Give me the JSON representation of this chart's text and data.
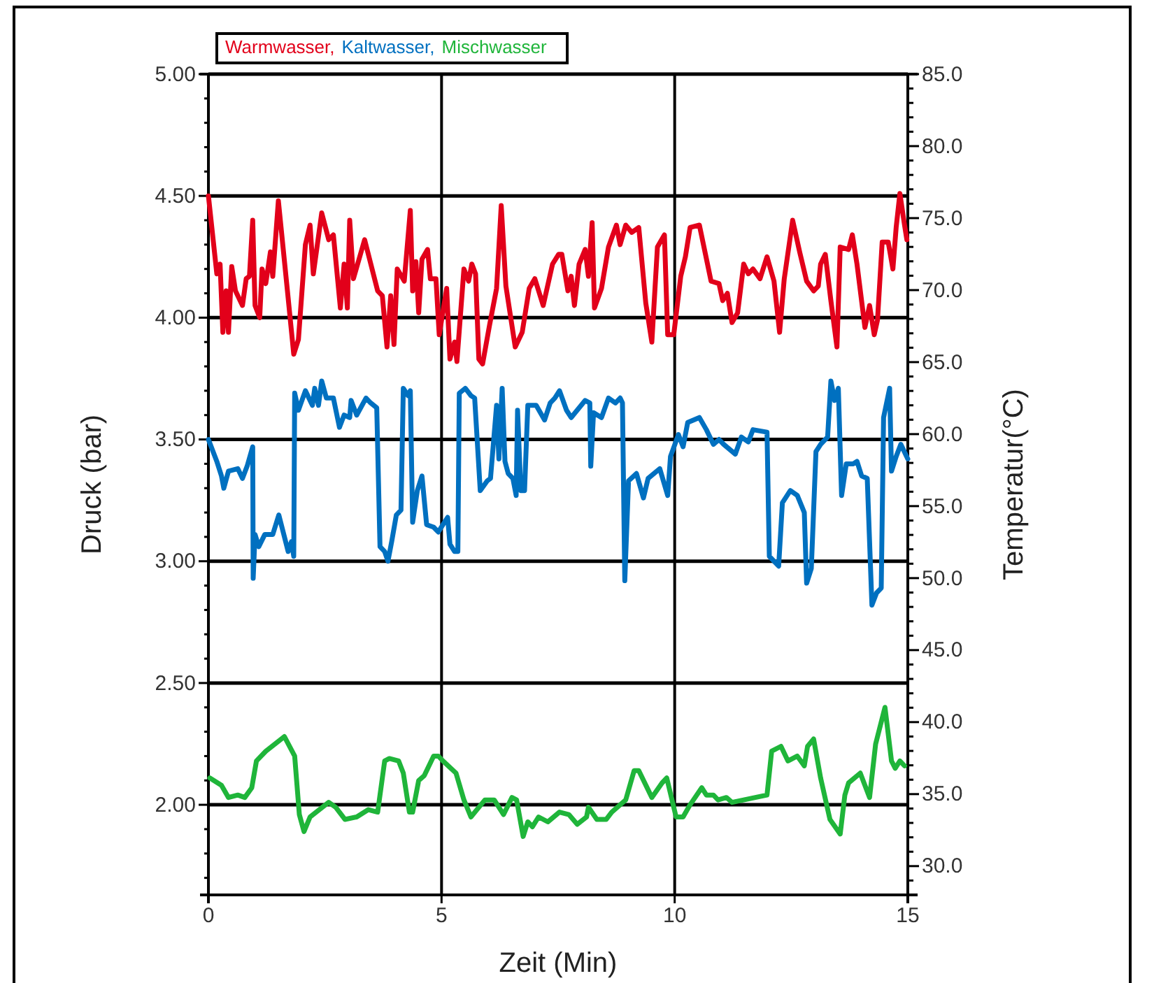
{
  "chart_data": {
    "type": "line",
    "xlabel": "Zeit (Min)",
    "ylabel": "Druck (bar)",
    "y2label": "Temperatur(°C)",
    "xlim": [
      0,
      15
    ],
    "xticks": [
      0,
      5,
      10,
      15
    ],
    "ylim": [
      1.63,
      5.0
    ],
    "yticks": [
      {
        "value": 5.0,
        "label": "5.00"
      },
      {
        "value": 4.9,
        "label": null
      },
      {
        "value": 4.8,
        "label": null
      },
      {
        "value": 4.7,
        "label": null
      },
      {
        "value": 4.6,
        "label": null
      },
      {
        "value": 4.5,
        "label": "4.50"
      },
      {
        "value": 4.4,
        "label": null
      },
      {
        "value": 4.3,
        "label": null
      },
      {
        "value": 4.2,
        "label": null
      },
      {
        "value": 4.1,
        "label": null
      },
      {
        "value": 4.0,
        "label": "4.00"
      },
      {
        "value": 3.9,
        "label": null
      },
      {
        "value": 3.8,
        "label": null
      },
      {
        "value": 3.7,
        "label": null
      },
      {
        "value": 3.6,
        "label": null
      },
      {
        "value": 3.5,
        "label": "3.50"
      },
      {
        "value": 3.4,
        "label": null
      },
      {
        "value": 3.3,
        "label": null
      },
      {
        "value": 3.2,
        "label": null
      },
      {
        "value": 3.1,
        "label": null
      },
      {
        "value": 3.0,
        "label": "3.00"
      },
      {
        "value": 2.9,
        "label": null
      },
      {
        "value": 2.8,
        "label": null
      },
      {
        "value": 2.7,
        "label": null
      },
      {
        "value": 2.6,
        "label": null
      },
      {
        "value": 2.5,
        "label": "2.50"
      },
      {
        "value": 2.4,
        "label": null
      },
      {
        "value": 2.3,
        "label": null
      },
      {
        "value": 2.2,
        "label": null
      },
      {
        "value": 2.1,
        "label": null
      },
      {
        "value": 2.0,
        "label": "2.00"
      },
      {
        "value": 1.9,
        "label": null
      },
      {
        "value": 1.8,
        "label": null
      },
      {
        "value": 1.7,
        "label": null
      }
    ],
    "y2lim": [
      28,
      85
    ],
    "y2ticks": [
      {
        "value": 85,
        "label": "85.0"
      },
      {
        "value": 84,
        "label": null
      },
      {
        "value": 83,
        "label": null
      },
      {
        "value": 82,
        "label": null
      },
      {
        "value": 81,
        "label": null
      },
      {
        "value": 80,
        "label": "80.0"
      },
      {
        "value": 79,
        "label": null
      },
      {
        "value": 78,
        "label": null
      },
      {
        "value": 77,
        "label": null
      },
      {
        "value": 76,
        "label": null
      },
      {
        "value": 75,
        "label": "75.0"
      },
      {
        "value": 74,
        "label": null
      },
      {
        "value": 73,
        "label": null
      },
      {
        "value": 72,
        "label": null
      },
      {
        "value": 71,
        "label": null
      },
      {
        "value": 70,
        "label": "70.0"
      },
      {
        "value": 69,
        "label": null
      },
      {
        "value": 68,
        "label": null
      },
      {
        "value": 67,
        "label": null
      },
      {
        "value": 66,
        "label": null
      },
      {
        "value": 65,
        "label": "65.0"
      },
      {
        "value": 64,
        "label": null
      },
      {
        "value": 63,
        "label": null
      },
      {
        "value": 62,
        "label": null
      },
      {
        "value": 61,
        "label": null
      },
      {
        "value": 60,
        "label": "60.0"
      },
      {
        "value": 59,
        "label": null
      },
      {
        "value": 58,
        "label": null
      },
      {
        "value": 57,
        "label": null
      },
      {
        "value": 56,
        "label": null
      },
      {
        "value": 55,
        "label": "55.0"
      },
      {
        "value": 54,
        "label": null
      },
      {
        "value": 53,
        "label": null
      },
      {
        "value": 52,
        "label": null
      },
      {
        "value": 51,
        "label": null
      },
      {
        "value": 50,
        "label": "50.0"
      },
      {
        "value": 49,
        "label": null
      },
      {
        "value": 48,
        "label": null
      },
      {
        "value": 47,
        "label": null
      },
      {
        "value": 46,
        "label": null
      },
      {
        "value": 45,
        "label": "45.0"
      },
      {
        "value": 44,
        "label": null
      },
      {
        "value": 43,
        "label": null
      },
      {
        "value": 42,
        "label": null
      },
      {
        "value": 41,
        "label": null
      },
      {
        "value": 40,
        "label": "40.0"
      },
      {
        "value": 39,
        "label": null
      },
      {
        "value": 38,
        "label": null
      },
      {
        "value": 37,
        "label": null
      },
      {
        "value": 36,
        "label": null
      },
      {
        "value": 35,
        "label": "35.0"
      },
      {
        "value": 34,
        "label": null
      },
      {
        "value": 33,
        "label": null
      },
      {
        "value": 32,
        "label": null
      },
      {
        "value": 31,
        "label": null
      },
      {
        "value": 30,
        "label": "30.0"
      },
      {
        "value": 29,
        "label": null
      }
    ],
    "grid": true,
    "legend": "top left",
    "line_style": "solid",
    "marker": "none",
    "series": [
      {
        "name": "Warmwasser,",
        "color": "#e2001a",
        "x": [
          0,
          0.18,
          0.25,
          0.31,
          0.38,
          0.43,
          0.5,
          0.58,
          0.73,
          0.81,
          0.88,
          0.95,
          1.0,
          1.1,
          1.15,
          1.23,
          1.33,
          1.38,
          1.5,
          1.7,
          1.83,
          1.93,
          2.08,
          2.18,
          2.25,
          2.43,
          2.58,
          2.68,
          2.83,
          2.91,
          2.98,
          3.03,
          3.11,
          3.35,
          3.63,
          3.73,
          3.83,
          3.91,
          3.98,
          4.05,
          4.2,
          4.33,
          4.38,
          4.45,
          4.51,
          4.58,
          4.7,
          4.76,
          4.88,
          4.95,
          5.11,
          5.18,
          5.28,
          5.33,
          5.48,
          5.58,
          5.65,
          5.73,
          5.8,
          5.88,
          6.03,
          6.18,
          6.28,
          6.38,
          6.58,
          6.73,
          6.88,
          7.0,
          7.18,
          7.38,
          7.51,
          7.58,
          7.71,
          7.78,
          7.85,
          7.95,
          8.08,
          8.15,
          8.23,
          8.28,
          8.43,
          8.58,
          8.75,
          8.83,
          8.95,
          9.08,
          9.23,
          9.38,
          9.51,
          9.63,
          9.78,
          9.85,
          9.98,
          10.13,
          10.23,
          10.33,
          10.53,
          10.78,
          10.95,
          11.03,
          11.13,
          11.23,
          11.35,
          11.48,
          11.58,
          11.68,
          11.83,
          11.98,
          12.13,
          12.25,
          12.35,
          12.53,
          12.68,
          12.83,
          12.98,
          13.08,
          13.13,
          13.23,
          13.35,
          13.48,
          13.55,
          13.73,
          13.81,
          13.91,
          14.08,
          14.18,
          14.28,
          14.35,
          14.45,
          14.58,
          14.68,
          14.75,
          14.83,
          14.93,
          14.98
        ],
        "values": [
          4.5,
          4.18,
          4.22,
          3.94,
          4.11,
          3.94,
          4.21,
          4.11,
          4.05,
          4.16,
          4.17,
          4.4,
          4.05,
          4.0,
          4.2,
          4.14,
          4.27,
          4.17,
          4.48,
          4.1,
          3.85,
          3.91,
          4.3,
          4.38,
          4.18,
          4.43,
          4.32,
          4.34,
          4.04,
          4.22,
          4.04,
          4.4,
          4.16,
          4.32,
          4.11,
          4.09,
          3.88,
          4.09,
          3.89,
          4.2,
          4.15,
          4.44,
          4.11,
          4.23,
          4.02,
          4.24,
          4.28,
          4.16,
          4.16,
          3.93,
          4.12,
          3.83,
          3.9,
          3.82,
          4.2,
          4.15,
          4.22,
          4.18,
          3.83,
          3.81,
          3.97,
          4.12,
          4.46,
          4.13,
          3.88,
          3.94,
          4.12,
          4.16,
          4.05,
          4.22,
          4.26,
          4.26,
          4.11,
          4.17,
          4.05,
          4.22,
          4.28,
          4.17,
          4.39,
          4.04,
          4.12,
          4.29,
          4.38,
          4.3,
          4.38,
          4.35,
          4.37,
          4.06,
          3.9,
          4.29,
          4.34,
          3.93,
          3.93,
          4.17,
          4.25,
          4.37,
          4.38,
          4.15,
          4.14,
          4.07,
          4.1,
          3.98,
          4.02,
          4.22,
          4.18,
          4.2,
          4.16,
          4.25,
          4.15,
          3.94,
          4.16,
          4.4,
          4.27,
          4.15,
          4.11,
          4.13,
          4.22,
          4.26,
          4.07,
          3.88,
          4.29,
          4.28,
          4.34,
          4.22,
          3.96,
          4.05,
          3.93,
          3.99,
          4.31,
          4.31,
          4.2,
          4.37,
          4.51,
          4.38,
          4.32
        ]
      },
      {
        "name": "Kaltwasser,",
        "color": "#0070c0",
        "x": [
          0,
          0.18,
          0.28,
          0.33,
          0.43,
          0.63,
          0.73,
          0.83,
          0.95,
          0.96,
          1.0,
          1.08,
          1.21,
          1.38,
          1.51,
          1.63,
          1.71,
          1.78,
          1.83,
          1.85,
          1.93,
          2.08,
          2.23,
          2.28,
          2.36,
          2.43,
          2.53,
          2.68,
          2.81,
          2.91,
          3.03,
          3.06,
          3.18,
          3.38,
          3.48,
          3.61,
          3.68,
          3.78,
          3.85,
          3.93,
          4.03,
          4.13,
          4.18,
          4.28,
          4.33,
          4.38,
          4.48,
          4.58,
          4.68,
          4.83,
          4.93,
          5.03,
          5.13,
          5.18,
          5.28,
          5.35,
          5.38,
          5.51,
          5.63,
          5.71,
          5.83,
          5.98,
          6.05,
          6.18,
          6.23,
          6.3,
          6.36,
          6.43,
          6.53,
          6.6,
          6.63,
          6.7,
          6.78,
          6.85,
          7.03,
          7.21,
          7.33,
          7.43,
          7.53,
          7.68,
          7.78,
          8.08,
          8.18,
          8.2,
          8.26,
          8.43,
          8.58,
          8.73,
          8.83,
          8.88,
          8.93,
          9.01,
          9.18,
          9.33,
          9.43,
          9.68,
          9.85,
          9.91,
          10.08,
          10.18,
          10.28,
          10.53,
          10.68,
          10.83,
          10.95,
          11.05,
          11.3,
          11.43,
          11.58,
          11.68,
          11.98,
          12.03,
          12.23,
          12.31,
          12.48,
          12.63,
          12.78,
          12.83,
          12.93,
          13.03,
          13.13,
          13.28,
          13.35,
          13.43,
          13.51,
          13.58,
          13.68,
          13.83,
          13.91,
          14.01,
          14.13,
          14.23,
          14.33,
          14.43,
          14.48,
          14.61,
          14.65,
          14.75,
          14.85,
          15.0
        ],
        "values": [
          3.5,
          3.41,
          3.35,
          3.3,
          3.37,
          3.38,
          3.34,
          3.39,
          3.47,
          2.93,
          3.11,
          3.06,
          3.11,
          3.11,
          3.19,
          3.1,
          3.04,
          3.08,
          3.02,
          3.69,
          3.62,
          3.7,
          3.64,
          3.71,
          3.64,
          3.74,
          3.67,
          3.67,
          3.55,
          3.6,
          3.59,
          3.66,
          3.6,
          3.67,
          3.65,
          3.63,
          3.06,
          3.04,
          3.0,
          3.08,
          3.19,
          3.21,
          3.71,
          3.68,
          3.7,
          3.16,
          3.29,
          3.35,
          3.15,
          3.14,
          3.12,
          3.15,
          3.18,
          3.07,
          3.04,
          3.04,
          3.69,
          3.71,
          3.68,
          3.67,
          3.29,
          3.33,
          3.34,
          3.64,
          3.42,
          3.71,
          3.41,
          3.36,
          3.34,
          3.27,
          3.62,
          3.29,
          3.29,
          3.64,
          3.64,
          3.58,
          3.65,
          3.67,
          3.7,
          3.62,
          3.59,
          3.66,
          3.65,
          3.39,
          3.61,
          3.59,
          3.67,
          3.65,
          3.67,
          3.65,
          2.92,
          3.33,
          3.36,
          3.26,
          3.34,
          3.38,
          3.27,
          3.43,
          3.52,
          3.47,
          3.57,
          3.59,
          3.54,
          3.48,
          3.5,
          3.48,
          3.44,
          3.51,
          3.49,
          3.54,
          3.53,
          3.02,
          2.98,
          3.24,
          3.29,
          3.27,
          3.2,
          2.91,
          2.97,
          3.45,
          3.48,
          3.51,
          3.74,
          3.66,
          3.71,
          3.27,
          3.4,
          3.4,
          3.41,
          3.35,
          3.34,
          2.82,
          2.87,
          2.89,
          3.59,
          3.71,
          3.37,
          3.43,
          3.48,
          3.42
        ]
      },
      {
        "name": "Mischwasser",
        "color": "#1fb53a",
        "x": [
          0.03,
          0.28,
          0.43,
          0.63,
          0.78,
          0.93,
          1.03,
          1.23,
          1.63,
          1.85,
          1.95,
          2.05,
          2.18,
          2.38,
          2.58,
          2.73,
          2.93,
          3.18,
          3.43,
          3.63,
          3.78,
          3.88,
          4.08,
          4.18,
          4.31,
          4.38,
          4.51,
          4.63,
          4.83,
          4.93,
          5.03,
          5.31,
          5.48,
          5.63,
          5.93,
          6.13,
          6.33,
          6.51,
          6.61,
          6.75,
          6.85,
          6.95,
          7.08,
          7.28,
          7.53,
          7.73,
          7.91,
          8.11,
          8.15,
          8.33,
          8.53,
          8.65,
          8.83,
          8.95,
          9.13,
          9.23,
          9.51,
          9.73,
          9.83,
          10.03,
          10.18,
          10.33,
          10.58,
          10.68,
          10.83,
          10.93,
          11.11,
          11.23,
          11.73,
          11.98,
          12.08,
          12.28,
          12.43,
          12.63,
          12.78,
          12.85,
          12.98,
          13.13,
          13.33,
          13.55,
          13.65,
          13.73,
          13.98,
          14.18,
          14.31,
          14.51,
          14.65,
          14.73,
          14.83,
          14.93
        ],
        "values": [
          2.11,
          2.08,
          2.03,
          2.04,
          2.03,
          2.07,
          2.18,
          2.22,
          2.28,
          2.2,
          1.96,
          1.89,
          1.95,
          1.98,
          2.01,
          1.99,
          1.94,
          1.95,
          1.98,
          1.97,
          2.18,
          2.19,
          2.18,
          2.13,
          1.97,
          1.97,
          2.1,
          2.12,
          2.2,
          2.2,
          2.18,
          2.13,
          2.02,
          1.95,
          2.02,
          2.02,
          1.96,
          2.03,
          2.02,
          1.87,
          1.93,
          1.91,
          1.95,
          1.93,
          1.97,
          1.96,
          1.92,
          1.95,
          1.99,
          1.94,
          1.94,
          1.97,
          2.0,
          2.02,
          2.14,
          2.14,
          2.03,
          2.09,
          2.11,
          1.95,
          1.95,
          2.0,
          2.07,
          2.04,
          2.04,
          2.02,
          2.03,
          2.01,
          2.03,
          2.04,
          2.22,
          2.24,
          2.18,
          2.2,
          2.16,
          2.24,
          2.27,
          2.11,
          1.94,
          1.88,
          2.04,
          2.09,
          2.13,
          2.03,
          2.25,
          2.4,
          2.18,
          2.15,
          2.18,
          2.16
        ]
      }
    ]
  }
}
